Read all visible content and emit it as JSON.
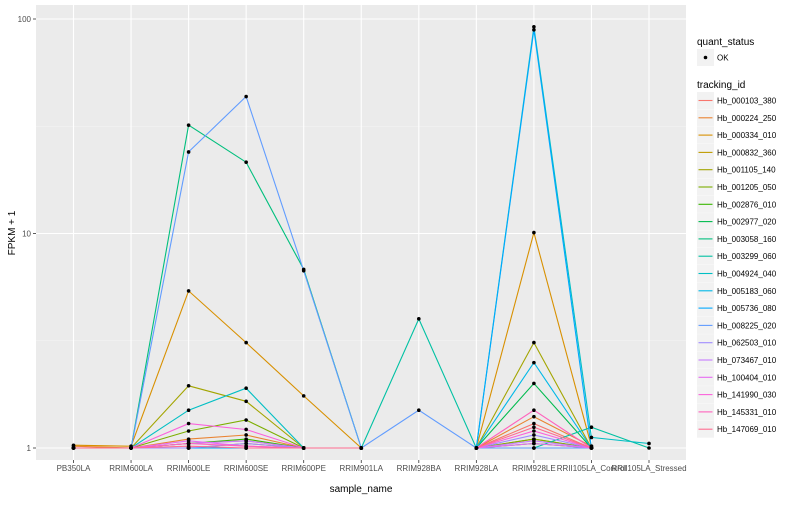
{
  "chart_data": {
    "type": "line",
    "xlabel": "sample_name",
    "ylabel": "FPKM + 1",
    "y_scale": "log10",
    "ylim": [
      1,
      100
    ],
    "y_ticks": [
      {
        "value": 1,
        "label": "1"
      },
      {
        "value": 10,
        "label": "10"
      },
      {
        "value": 100,
        "label": "100"
      }
    ],
    "grid": true,
    "legend_position": "right",
    "categories": [
      "PB350LA",
      "RRIM600LA",
      "RRIM600LE",
      "RRIM600SE",
      "RRIM600PE",
      "RRIM901LA",
      "RRIM928BA",
      "RRIM928LA",
      "RRIM928LE",
      "RRII105LA_Control",
      "RRII105LA_Stressed"
    ],
    "quant_status_legend": {
      "title": "quant_status",
      "entries": [
        "OK"
      ]
    },
    "series_legend_title": "tracking_id",
    "series": [
      {
        "name": "Hb_000103_380",
        "color": "#F8766D",
        "values": [
          1.0,
          1.0,
          1.05,
          1.08,
          1.0,
          1.0,
          null,
          1.0,
          1.3,
          1.0,
          null
        ]
      },
      {
        "name": "Hb_000224_250",
        "color": "#EA8331",
        "values": [
          1.02,
          1.0,
          1.1,
          1.15,
          1.0,
          1.0,
          null,
          1.0,
          1.4,
          1.02,
          null
        ]
      },
      {
        "name": "Hb_000334_010",
        "color": "#D89000",
        "values": [
          1.03,
          1.02,
          5.4,
          3.1,
          1.75,
          1.0,
          null,
          1.0,
          10.1,
          1.02,
          null
        ]
      },
      {
        "name": "Hb_000832_360",
        "color": "#C09B00",
        "values": [
          1.0,
          1.0,
          1.0,
          1.05,
          1.0,
          1.0,
          null,
          1.0,
          1.1,
          1.0,
          null
        ]
      },
      {
        "name": "Hb_001105_140",
        "color": "#A3A500",
        "values": [
          1.0,
          1.0,
          1.95,
          1.65,
          1.0,
          1.0,
          null,
          1.0,
          3.1,
          1.0,
          null
        ]
      },
      {
        "name": "Hb_001205_050",
        "color": "#7CAE00",
        "values": [
          1.0,
          1.0,
          1.2,
          1.35,
          1.0,
          1.0,
          null,
          1.0,
          1.1,
          1.0,
          null
        ]
      },
      {
        "name": "Hb_002876_010",
        "color": "#39B600",
        "values": [
          1.0,
          1.0,
          1.05,
          1.1,
          1.0,
          1.0,
          null,
          1.0,
          1.05,
          1.0,
          null
        ]
      },
      {
        "name": "Hb_002977_020",
        "color": "#00BB4E",
        "values": [
          1.0,
          1.0,
          1.0,
          1.0,
          1.0,
          1.0,
          null,
          1.0,
          2.0,
          1.0,
          null
        ]
      },
      {
        "name": "Hb_003058_160",
        "color": "#00BF7D",
        "values": [
          1.0,
          1.0,
          32.0,
          21.5,
          6.8,
          1.0,
          null,
          1.0,
          1.0,
          1.0,
          null
        ]
      },
      {
        "name": "Hb_003299_060",
        "color": "#00C1A3",
        "values": [
          1.0,
          1.0,
          1.0,
          1.0,
          1.0,
          1.0,
          4.0,
          1.0,
          1.0,
          1.25,
          1.0
        ]
      },
      {
        "name": "Hb_004924_040",
        "color": "#00BFC4",
        "values": [
          1.0,
          1.0,
          1.5,
          1.9,
          1.0,
          1.0,
          null,
          1.0,
          92.0,
          1.12,
          1.05
        ]
      },
      {
        "name": "Hb_005183_060",
        "color": "#00B8E7",
        "values": [
          1.0,
          1.0,
          1.0,
          1.0,
          1.0,
          1.0,
          null,
          1.0,
          2.5,
          1.0,
          null
        ]
      },
      {
        "name": "Hb_005736_080",
        "color": "#00A9FF",
        "values": [
          1.0,
          1.0,
          1.0,
          1.0,
          1.0,
          1.0,
          null,
          1.0,
          89.0,
          1.0,
          null
        ]
      },
      {
        "name": "Hb_008225_020",
        "color": "#619CFF",
        "values": [
          1.0,
          1.0,
          24.0,
          43.5,
          6.7,
          1.0,
          1.5,
          1.0,
          1.0,
          1.0,
          null
        ]
      },
      {
        "name": "Hb_062503_010",
        "color": "#9F8CFF",
        "values": [
          1.0,
          1.0,
          1.0,
          1.05,
          1.0,
          1.0,
          null,
          1.0,
          1.15,
          1.0,
          null
        ]
      },
      {
        "name": "Hb_073467_010",
        "color": "#C77CFF",
        "values": [
          1.0,
          1.0,
          1.05,
          1.08,
          1.0,
          1.0,
          null,
          1.0,
          1.08,
          1.0,
          null
        ]
      },
      {
        "name": "Hb_100404_010",
        "color": "#E76BF3",
        "values": [
          1.0,
          1.0,
          1.08,
          1.02,
          1.0,
          1.0,
          null,
          1.0,
          1.05,
          1.0,
          null
        ]
      },
      {
        "name": "Hb_141990_030",
        "color": "#FA62DB",
        "values": [
          1.0,
          1.0,
          1.3,
          1.22,
          1.0,
          1.0,
          null,
          1.0,
          1.2,
          1.0,
          null
        ]
      },
      {
        "name": "Hb_145331_010",
        "color": "#FF62BC",
        "values": [
          1.0,
          1.0,
          1.05,
          1.02,
          1.0,
          1.0,
          null,
          1.0,
          1.5,
          1.0,
          null
        ]
      },
      {
        "name": "Hb_147069_010",
        "color": "#FF6C91",
        "values": [
          1.0,
          1.0,
          1.02,
          1.0,
          1.0,
          1.0,
          null,
          1.0,
          1.25,
          1.0,
          null
        ]
      }
    ]
  }
}
